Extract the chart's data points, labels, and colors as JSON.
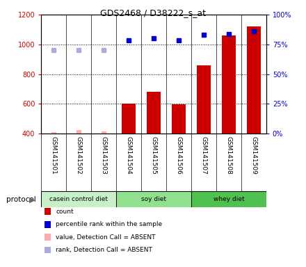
{
  "title": "GDS2468 / D38222_s_at",
  "samples": [
    "GSM141501",
    "GSM141502",
    "GSM141503",
    "GSM141504",
    "GSM141505",
    "GSM141506",
    "GSM141507",
    "GSM141508",
    "GSM141509"
  ],
  "group_labels": [
    "casein control diet",
    "soy diet",
    "whey diet"
  ],
  "group_colors_map": {
    "casein control diet": "#c8f0c8",
    "soy diet": "#90e090",
    "whey diet": "#50c050"
  },
  "count_values": [
    null,
    null,
    null,
    600,
    680,
    595,
    860,
    1060,
    1120
  ],
  "count_absent_values": [
    410,
    425,
    415,
    null,
    null,
    null,
    null,
    null,
    null
  ],
  "rank_values": [
    null,
    null,
    null,
    1025,
    1040,
    1025,
    1065,
    1070,
    1090
  ],
  "rank_absent_values": [
    960,
    960,
    960,
    null,
    null,
    null,
    null,
    null,
    null
  ],
  "ylim_left": [
    400,
    1200
  ],
  "ylim_right": [
    0,
    100
  ],
  "right_ticks": [
    0,
    25,
    50,
    75,
    100
  ],
  "right_tick_labels": [
    "0%",
    "25%",
    "50%",
    "75%",
    "100%"
  ],
  "left_ticks": [
    400,
    600,
    800,
    1000,
    1200
  ],
  "bar_color": "#cc0000",
  "bar_absent_color": "#ffaaaa",
  "rank_color": "#0000cc",
  "rank_absent_color": "#aaaadd",
  "dotted_lines": [
    600,
    800,
    1000
  ],
  "legend_items": [
    {
      "color": "#cc0000",
      "label": "count"
    },
    {
      "color": "#0000cc",
      "label": "percentile rank within the sample"
    },
    {
      "color": "#ffaaaa",
      "label": "value, Detection Call = ABSENT"
    },
    {
      "color": "#aaaadd",
      "label": "rank, Detection Call = ABSENT"
    }
  ]
}
